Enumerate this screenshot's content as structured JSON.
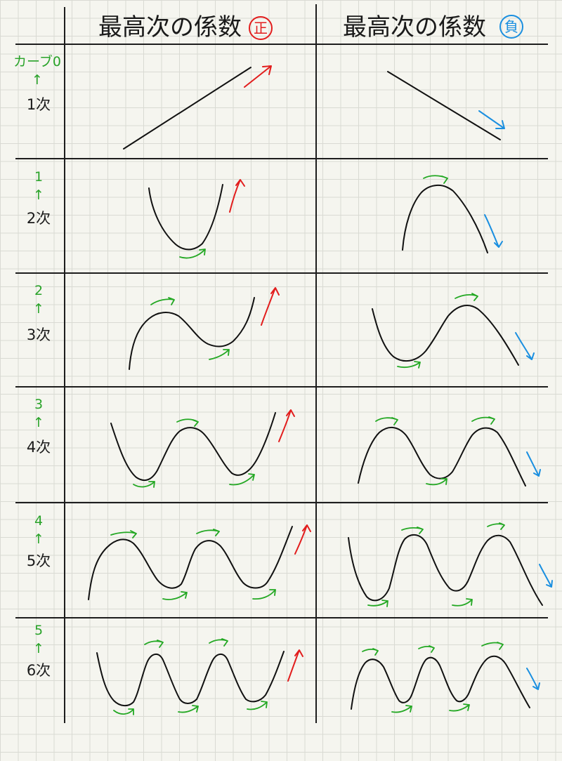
{
  "header": {
    "positive_column_title": "最高次の係数",
    "positive_badge": "正",
    "negative_column_title": "最高次の係数",
    "negative_badge": "負"
  },
  "rows": [
    {
      "curve_count": "カーブ0",
      "arrow_symbol": "↑",
      "degree": "1次",
      "extrema_count": 0
    },
    {
      "curve_count": "1",
      "arrow_symbol": "↑",
      "degree": "2次",
      "extrema_count": 1
    },
    {
      "curve_count": "2",
      "arrow_symbol": "↑",
      "degree": "3次",
      "extrema_count": 2
    },
    {
      "curve_count": "3",
      "arrow_symbol": "↑",
      "degree": "4次",
      "extrema_count": 3
    },
    {
      "curve_count": "4",
      "arrow_symbol": "↑",
      "degree": "5次",
      "extrema_count": 4
    },
    {
      "curve_count": "5",
      "arrow_symbol": "↑",
      "degree": "6次",
      "extrema_count": 5
    }
  ],
  "colors": {
    "ink": "#111111",
    "curve_count_label": "#29a329",
    "turning_arrow": "#23a823",
    "positive_end_arrow": "#e21d1d",
    "negative_end_arrow": "#1a8fe0",
    "paper": "#f5f5ef",
    "paper_grid": "#d9dad3"
  },
  "icons": {
    "turning_point_marker": "curved-arrow-icon",
    "positive_end_marker": "up-arrow-icon",
    "negative_end_marker": "down-arrow-icon"
  }
}
